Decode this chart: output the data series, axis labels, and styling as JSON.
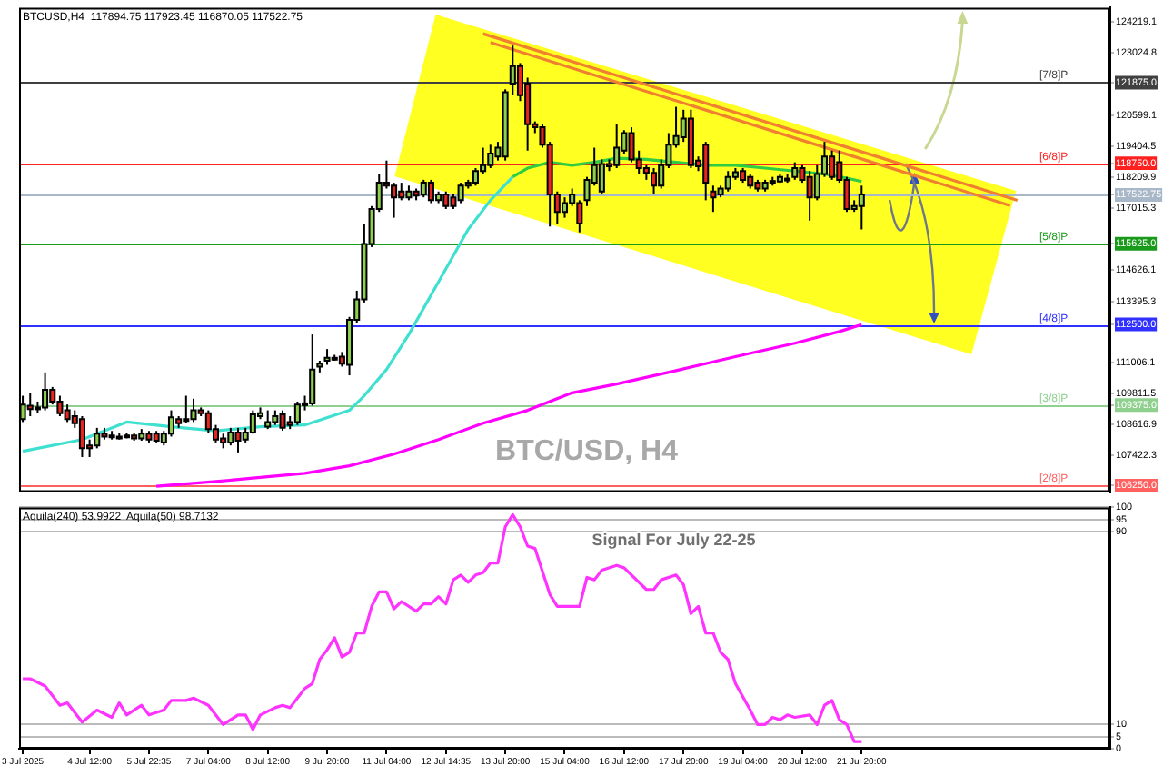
{
  "chart_data": [
    {
      "type": "candlestick",
      "x": [
        "2025-07-03T00:00",
        "2025-07-03T04:00",
        "2025-07-03T08:00",
        "2025-07-03T12:00",
        "2025-07-03T16:00",
        "2025-07-03T20:00",
        "2025-07-04T00:00",
        "2025-07-04T04:00",
        "2025-07-04T08:00",
        "2025-07-04T12:00",
        "2025-07-04T16:00",
        "2025-07-04T20:00",
        "2025-07-05T00:00",
        "2025-07-05T04:00",
        "2025-07-05T08:00",
        "2025-07-05T12:00",
        "2025-07-05T16:00",
        "2025-07-05T20:00",
        "2025-07-06T00:00",
        "2025-07-06T04:00",
        "2025-07-06T08:00",
        "2025-07-06T12:00",
        "2025-07-06T16:00",
        "2025-07-06T20:00",
        "2025-07-07T00:00",
        "2025-07-07T04:00",
        "2025-07-07T08:00",
        "2025-07-07T12:00",
        "2025-07-07T16:00",
        "2025-07-07T20:00",
        "2025-07-08T00:00",
        "2025-07-08T04:00",
        "2025-07-08T08:00",
        "2025-07-08T12:00",
        "2025-07-08T16:00",
        "2025-07-08T20:00",
        "2025-07-09T00:00",
        "2025-07-09T04:00",
        "2025-07-09T08:00",
        "2025-07-09T12:00",
        "2025-07-09T16:00",
        "2025-07-09T20:00",
        "2025-07-10T00:00",
        "2025-07-10T04:00",
        "2025-07-10T08:00",
        "2025-07-10T12:00",
        "2025-07-10T16:00",
        "2025-07-10T20:00",
        "2025-07-11T00:00",
        "2025-07-11T04:00",
        "2025-07-11T08:00",
        "2025-07-11T12:00",
        "2025-07-11T16:00",
        "2025-07-11T20:00",
        "2025-07-12T00:00",
        "2025-07-12T04:00",
        "2025-07-12T08:00",
        "2025-07-12T12:00",
        "2025-07-12T16:00",
        "2025-07-12T20:00",
        "2025-07-13T00:00",
        "2025-07-13T04:00",
        "2025-07-13T08:00",
        "2025-07-13T12:00",
        "2025-07-13T16:00",
        "2025-07-13T20:00",
        "2025-07-14T00:00",
        "2025-07-14T04:00",
        "2025-07-14T08:00",
        "2025-07-14T12:00",
        "2025-07-14T16:00",
        "2025-07-14T20:00",
        "2025-07-15T00:00",
        "2025-07-15T04:00",
        "2025-07-15T08:00",
        "2025-07-15T12:00",
        "2025-07-15T16:00",
        "2025-07-15T20:00",
        "2025-07-16T00:00",
        "2025-07-16T04:00",
        "2025-07-16T08:00",
        "2025-07-16T12:00",
        "2025-07-16T16:00",
        "2025-07-16T20:00",
        "2025-07-17T00:00",
        "2025-07-17T04:00",
        "2025-07-17T08:00",
        "2025-07-17T12:00",
        "2025-07-17T16:00",
        "2025-07-17T20:00",
        "2025-07-18T00:00",
        "2025-07-18T04:00",
        "2025-07-18T08:00",
        "2025-07-18T12:00",
        "2025-07-18T16:00",
        "2025-07-18T20:00",
        "2025-07-19T00:00",
        "2025-07-19T04:00",
        "2025-07-19T08:00",
        "2025-07-19T12:00",
        "2025-07-19T16:00",
        "2025-07-19T20:00",
        "2025-07-20T00:00",
        "2025-07-20T04:00",
        "2025-07-20T08:00",
        "2025-07-20T12:00",
        "2025-07-20T16:00",
        "2025-07-20T20:00",
        "2025-07-21T00:00",
        "2025-07-21T04:00",
        "2025-07-21T08:00",
        "2025-07-21T12:00",
        "2025-07-21T16:00",
        "2025-07-21T20:00"
      ],
      "ohlc": [
        [
          108829,
          109734,
          108716,
          109395
        ],
        [
          109349,
          109847,
          108942,
          109214
        ],
        [
          109214,
          109508,
          109055,
          109281
        ],
        [
          109281,
          110639,
          109168,
          109960
        ],
        [
          109960,
          110074,
          109395,
          109508
        ],
        [
          109508,
          109734,
          108942,
          109055
        ],
        [
          109168,
          109395,
          108716,
          108829
        ],
        [
          108942,
          109168,
          108489,
          108671
        ],
        [
          108829,
          108942,
          107358,
          107697
        ],
        [
          107810,
          108037,
          107358,
          107697
        ],
        [
          107810,
          108489,
          107697,
          108263
        ],
        [
          108263,
          108489,
          108037,
          108150
        ],
        [
          108195,
          108370,
          108037,
          108195
        ],
        [
          108150,
          108309,
          108037,
          108150
        ],
        [
          108195,
          108309,
          108082,
          108150
        ],
        [
          108195,
          108309,
          107991,
          108082
        ],
        [
          108082,
          108444,
          107991,
          108263
        ],
        [
          108263,
          108370,
          107924,
          108037
        ],
        [
          108263,
          108370,
          107924,
          107991
        ],
        [
          107924,
          108370,
          107810,
          108263
        ],
        [
          108263,
          109168,
          108150,
          108897
        ],
        [
          108829,
          108942,
          108489,
          108671
        ],
        [
          108761,
          109734,
          108671,
          108829
        ],
        [
          108829,
          109620,
          108716,
          109168
        ],
        [
          109168,
          109281,
          108942,
          109055
        ],
        [
          109055,
          109168,
          108309,
          108444
        ],
        [
          108444,
          108602,
          107924,
          108037
        ],
        [
          108082,
          108263,
          107697,
          107924
        ],
        [
          107924,
          108489,
          107810,
          108309
        ],
        [
          108309,
          108489,
          107539,
          107991
        ],
        [
          108037,
          108489,
          107924,
          108309
        ],
        [
          108309,
          109168,
          108263,
          109010
        ],
        [
          108942,
          109281,
          108829,
          109055
        ],
        [
          108535,
          109168,
          108444,
          108716
        ],
        [
          108716,
          109168,
          108602,
          108942
        ],
        [
          109010,
          109168,
          108380,
          108489
        ],
        [
          108716,
          108942,
          108444,
          108602
        ],
        [
          108716,
          109508,
          108602,
          109395
        ],
        [
          109395,
          109734,
          109168,
          109440
        ],
        [
          109440,
          112110,
          109349,
          110752
        ],
        [
          110866,
          111092,
          110639,
          110979
        ],
        [
          111092,
          111545,
          110934,
          111205
        ],
        [
          111205,
          111320,
          111092,
          111205
        ],
        [
          111251,
          111430,
          110866,
          110979
        ],
        [
          110934,
          112790,
          110526,
          112676
        ],
        [
          112676,
          113807,
          112560,
          113468
        ],
        [
          113468,
          116410,
          113350,
          115618
        ],
        [
          115618,
          117089,
          115500,
          116976
        ],
        [
          116976,
          118333,
          116863,
          117994
        ],
        [
          117994,
          118854,
          117768,
          117881
        ],
        [
          117881,
          117994,
          116636,
          117428
        ],
        [
          117654,
          117994,
          117315,
          117428
        ],
        [
          117428,
          117881,
          117315,
          117654
        ],
        [
          117654,
          117768,
          117315,
          117496
        ],
        [
          117541,
          118107,
          117428,
          117994
        ],
        [
          117994,
          118107,
          117202,
          117315
        ],
        [
          117315,
          117654,
          117202,
          117541
        ],
        [
          117541,
          117654,
          116976,
          117089
        ],
        [
          117428,
          117541,
          116976,
          117089
        ],
        [
          117315,
          117994,
          117202,
          117881
        ],
        [
          117881,
          118107,
          117768,
          117994
        ],
        [
          117994,
          118560,
          117881,
          118447
        ],
        [
          118447,
          119352,
          118333,
          118673
        ],
        [
          118673,
          119465,
          118560,
          119126
        ],
        [
          119012,
          119578,
          118854,
          119352
        ],
        [
          119012,
          121615,
          118854,
          121502
        ],
        [
          121841,
          123312,
          121389,
          122520
        ],
        [
          122520,
          122633,
          121160,
          121389
        ],
        [
          121841,
          122067,
          119239,
          120257
        ],
        [
          120257,
          120370,
          119918,
          120144
        ],
        [
          120144,
          120257,
          119352,
          119465
        ],
        [
          119465,
          119578,
          116297,
          117541
        ],
        [
          117541,
          117654,
          116410,
          116863
        ],
        [
          116863,
          117428,
          116636,
          117202
        ],
        [
          117202,
          117768,
          117089,
          117541
        ],
        [
          117202,
          117315,
          116070,
          116410
        ],
        [
          117315,
          118220,
          117089,
          118107
        ],
        [
          117994,
          119352,
          117881,
          118673
        ],
        [
          117654,
          118899,
          117541,
          118718
        ],
        [
          118718,
          118899,
          118447,
          118628
        ],
        [
          118673,
          120257,
          118560,
          119352
        ],
        [
          119239,
          120031,
          119126,
          119918
        ],
        [
          119918,
          120144,
          118786,
          118899
        ],
        [
          118899,
          119239,
          118333,
          118560
        ],
        [
          118560,
          118673,
          118107,
          118379
        ],
        [
          118379,
          118560,
          117541,
          117881
        ],
        [
          117881,
          118899,
          117768,
          118673
        ],
        [
          118673,
          119918,
          118560,
          119465
        ],
        [
          119465,
          120936,
          119352,
          119804
        ],
        [
          119759,
          120823,
          119578,
          120483
        ],
        [
          120483,
          120823,
          118560,
          118673
        ],
        [
          118854,
          119012,
          118447,
          118628
        ],
        [
          119465,
          119578,
          117315,
          117994
        ],
        [
          117654,
          117881,
          116863,
          117428
        ],
        [
          117541,
          117881,
          117428,
          117768
        ],
        [
          117768,
          118447,
          117654,
          118220
        ],
        [
          118220,
          118560,
          118107,
          118401
        ],
        [
          118447,
          118560,
          117994,
          118107
        ],
        [
          118220,
          118333,
          117768,
          117881
        ],
        [
          117994,
          118107,
          117654,
          117768
        ],
        [
          117768,
          118107,
          117654,
          117994
        ],
        [
          117994,
          118220,
          117881,
          118062
        ],
        [
          118039,
          118333,
          117994,
          118220
        ],
        [
          118152,
          118333,
          117994,
          118152
        ],
        [
          118220,
          118786,
          118107,
          118560
        ],
        [
          118560,
          118673,
          117994,
          118107
        ],
        [
          118220,
          118447,
          116523,
          117428
        ],
        [
          117428,
          118673,
          117315,
          118333
        ],
        [
          118333,
          119578,
          118220,
          119012
        ],
        [
          119012,
          119239,
          118107,
          118220
        ],
        [
          118786,
          119239,
          117994,
          118107
        ],
        [
          118107,
          118220,
          116863,
          116976
        ],
        [
          116976,
          117315,
          116863,
          117089
        ],
        [
          117089,
          117881,
          116184,
          117541
        ]
      ],
      "series": [
        {
          "type": "line",
          "color": "#40e0d0",
          "x": [
            "2025-07-03T00:00",
            "2025-07-04T08:00",
            "2025-07-05T08:00",
            "2025-07-06T08:00",
            "2025-07-07T08:00",
            "2025-07-08T08:00",
            "2025-07-09T08:00",
            "2025-07-10T08:00",
            "2025-07-10T16:00",
            "2025-07-11T04:00",
            "2025-07-11T16:00",
            "2025-07-12T08:00",
            "2025-07-13T00:00",
            "2025-07-13T12:00",
            "2025-07-14T00:00"
          ],
          "values": [
            107584,
            108037,
            108716,
            108535,
            108376,
            108535,
            108602,
            109168,
            109734,
            110752,
            112110,
            114147,
            116184,
            117315,
            118220
          ]
        },
        {
          "type": "line",
          "color": "#2ecc40",
          "x": [
            "2025-07-14T00:00",
            "2025-07-14T08:00",
            "2025-07-14T20:00",
            "2025-07-15T08:00",
            "2025-07-15T20:00",
            "2025-07-16T08:00",
            "2025-07-17T00:00",
            "2025-07-17T16:00",
            "2025-07-18T08:00",
            "2025-07-19T00:00",
            "2025-07-19T16:00",
            "2025-07-20T08:00",
            "2025-07-21T00:00",
            "2025-07-21T12:00",
            "2025-07-21T20:00"
          ],
          "values": [
            118220,
            118560,
            118786,
            118673,
            118786,
            118944,
            118899,
            118786,
            118673,
            118673,
            118560,
            118447,
            118333,
            118175,
            118039
          ]
        },
        {
          "type": "line",
          "color": "#f08030",
          "x": [
            "2025-07-13T08:00",
            "2025-07-25T08:00"
          ],
          "values": [
            123770,
            117310
          ]
        },
        {
          "type": "line",
          "color": "#f08030",
          "x": [
            "2025-07-13T12:00",
            "2025-07-25T04:00"
          ],
          "values": [
            123430,
            117110
          ]
        },
        {
          "type": "line",
          "color": "#ff00ff",
          "x": [
            "2025-07-06T00:00",
            "2025-07-07T08:00",
            "2025-07-08T08:00",
            "2025-07-09T08:00",
            "2025-07-10T08:00",
            "2025-07-11T08:00",
            "2025-07-12T08:00",
            "2025-07-13T08:00",
            "2025-07-14T08:00",
            "2025-07-15T08:00",
            "2025-07-16T08:00",
            "2025-07-17T16:00",
            "2025-07-19T00:00",
            "2025-07-20T08:00",
            "2025-07-21T08:00",
            "2025-07-21T20:00"
          ],
          "values": [
            106226,
            106407,
            106566,
            106725,
            107019,
            107471,
            108037,
            108671,
            109168,
            109847,
            110187,
            110707,
            111251,
            111771,
            112224,
            112495
          ]
        }
      ],
      "xlim": [
        "2025-07-02T22:00",
        "2025-07-27T10:00"
      ],
      "ylim": [
        106000,
        124780
      ],
      "yticks": [
        {
          "value": 106250,
          "label": "106250.0"
        },
        107422.3,
        108616.9,
        {
          "value": 109375,
          "label": "109375.0"
        },
        109811.5,
        111006.1,
        {
          "value": 112500,
          "label": "112500.0"
        },
        113395.3,
        114626.1,
        {
          "value": 115625,
          "label": "115625.0"
        },
        117015.3,
        {
          "value": 117522.75,
          "label": "117522.75"
        },
        118209.9,
        {
          "value": 118750,
          "label": "118750.0"
        },
        119404.5,
        120599.1,
        {
          "value": 121875,
          "label": "121875.0"
        },
        123024.8,
        124219.1
      ],
      "tick_labels": "y",
      "ref_lines": [
        {
          "axis": "y",
          "value": 121875,
          "label": "[7/8]P",
          "color": "#404040"
        },
        {
          "axis": "y",
          "value": 118750,
          "label": "[6/8]P",
          "color": "#ff2020"
        },
        {
          "axis": "y",
          "value": 117522.75,
          "label": null,
          "color": "#a8b8c8"
        },
        {
          "axis": "y",
          "value": 115625,
          "label": "[5/8]P",
          "color": "#1a9a1a"
        },
        {
          "axis": "y",
          "value": 112500,
          "label": "[4/8]P",
          "color": "#3030ff"
        },
        {
          "axis": "y",
          "value": 109375,
          "label": "[3/8]P",
          "color": "#8fd08f"
        },
        {
          "axis": "y",
          "value": 106250,
          "label": "[2/8]P",
          "color": "#ff6060"
        }
      ],
      "annotations": [
        "BTCUSD,H4  117894.75 117923.45 116870.05 117522.75",
        "BTC/USD, H4"
      ]
    },
    {
      "type": "line",
      "series": [
        {
          "color": "#ff33ff",
          "x": [
            "2025-07-03T00:00",
            "2025-07-03T04:00",
            "2025-07-03T12:00",
            "2025-07-03T20:00",
            "2025-07-04T00:00",
            "2025-07-04T08:00",
            "2025-07-04T16:00",
            "2025-07-05T00:00",
            "2025-07-05T04:00",
            "2025-07-05T08:00",
            "2025-07-05T16:00",
            "2025-07-05T20:00",
            "2025-07-06T04:00",
            "2025-07-06T08:00",
            "2025-07-06T16:00",
            "2025-07-06T20:00",
            "2025-07-07T04:00",
            "2025-07-07T12:00",
            "2025-07-07T20:00",
            "2025-07-08T00:00",
            "2025-07-08T04:00",
            "2025-07-08T08:00",
            "2025-07-08T16:00",
            "2025-07-08T20:00",
            "2025-07-09T00:00",
            "2025-07-09T04:00",
            "2025-07-09T08:00",
            "2025-07-09T12:00",
            "2025-07-09T16:00",
            "2025-07-09T20:00",
            "2025-07-10T00:00",
            "2025-07-10T04:00",
            "2025-07-10T08:00",
            "2025-07-10T12:00",
            "2025-07-10T16:00",
            "2025-07-10T20:00",
            "2025-07-11T00:00",
            "2025-07-11T04:00",
            "2025-07-11T08:00",
            "2025-07-11T12:00",
            "2025-07-11T20:00",
            "2025-07-12T00:00",
            "2025-07-12T04:00",
            "2025-07-12T08:00",
            "2025-07-12T12:00",
            "2025-07-12T16:00",
            "2025-07-12T20:00",
            "2025-07-13T00:00",
            "2025-07-13T04:00",
            "2025-07-13T08:00",
            "2025-07-13T12:00",
            "2025-07-13T16:00",
            "2025-07-13T20:00",
            "2025-07-14T00:00",
            "2025-07-14T04:00",
            "2025-07-14T08:00",
            "2025-07-14T12:00",
            "2025-07-14T20:00",
            "2025-07-15T00:00",
            "2025-07-15T08:00",
            "2025-07-15T12:00",
            "2025-07-15T16:00",
            "2025-07-15T20:00",
            "2025-07-16T00:00",
            "2025-07-16T08:00",
            "2025-07-16T12:00",
            "2025-07-17T00:00",
            "2025-07-17T04:00",
            "2025-07-17T08:00",
            "2025-07-17T16:00",
            "2025-07-17T20:00",
            "2025-07-18T00:00",
            "2025-07-18T04:00",
            "2025-07-18T08:00",
            "2025-07-18T12:00",
            "2025-07-18T16:00",
            "2025-07-18T20:00",
            "2025-07-19T00:00",
            "2025-07-19T08:00",
            "2025-07-19T12:00",
            "2025-07-19T16:00",
            "2025-07-19T20:00",
            "2025-07-20T00:00",
            "2025-07-20T04:00",
            "2025-07-20T08:00",
            "2025-07-20T16:00",
            "2025-07-20T20:00",
            "2025-07-21T00:00",
            "2025-07-21T04:00",
            "2025-07-21T08:00",
            "2025-07-21T12:00",
            "2025-07-21T16:00",
            "2025-07-21T20:00"
          ],
          "values": [
            29,
            29,
            26,
            18,
            19,
            11,
            16,
            13,
            19,
            14,
            18,
            14,
            16,
            20,
            20,
            21,
            18,
            10,
            14,
            14,
            8,
            14,
            17,
            18,
            17,
            21,
            25,
            27,
            37,
            41,
            46,
            38,
            40,
            48,
            48,
            59,
            65,
            65,
            58,
            61,
            57,
            60,
            60,
            63,
            60,
            70,
            72,
            69,
            72,
            73,
            77,
            77,
            92,
            97,
            92,
            84,
            83,
            64,
            59,
            59,
            59,
            71,
            70,
            74,
            76,
            75,
            66,
            66,
            70,
            72,
            68,
            56,
            59,
            48,
            48,
            40,
            37,
            27,
            16,
            10,
            10,
            13,
            12,
            14,
            13,
            14,
            10,
            18,
            20,
            12,
            10,
            3,
            3
          ]
        }
      ],
      "xlim": [
        "2025-07-02T22:00",
        "2025-07-27T10:00"
      ],
      "xticks": [
        {
          "value": "2025-07-03T00:00",
          "label": "3 Jul 2025"
        },
        {
          "value": "2025-07-04T12:00",
          "label": "4 Jul 12:00"
        },
        {
          "value": "2025-07-05T20:00",
          "label": "5 Jul 22:35"
        },
        {
          "value": "2025-07-07T04:00",
          "label": "7 Jul 04:00"
        },
        {
          "value": "2025-07-08T12:00",
          "label": "8 Jul 12:00"
        },
        {
          "value": "2025-07-09T20:00",
          "label": "9 Jul 20:00"
        },
        {
          "value": "2025-07-11T04:00",
          "label": "11 Jul 04:00"
        },
        {
          "value": "2025-07-12T12:00",
          "label": "12 Jul 14:35"
        },
        {
          "value": "2025-07-13T20:00",
          "label": "13 Jul 20:00"
        },
        {
          "value": "2025-07-15T04:00",
          "label": "15 Jul 04:00"
        },
        {
          "value": "2025-07-16T12:00",
          "label": "16 Jul 12:00"
        },
        {
          "value": "2025-07-17T20:00",
          "label": "17 Jul 20:00"
        },
        {
          "value": "2025-07-19T04:00",
          "label": "19 Jul 04:00"
        },
        {
          "value": "2025-07-20T12:00",
          "label": "20 Jul 12:00"
        },
        {
          "value": "2025-07-21T20:00",
          "label": "21 Jul 20:00"
        }
      ],
      "ylim": [
        0,
        100
      ],
      "yticks": [
        0,
        5,
        10,
        90,
        95,
        100
      ],
      "grid": "y",
      "annotations": [
        "Aquila(240) 53.9922  Aquila(50) 98.7132",
        "Signal For July 22-25"
      ]
    }
  ]
}
